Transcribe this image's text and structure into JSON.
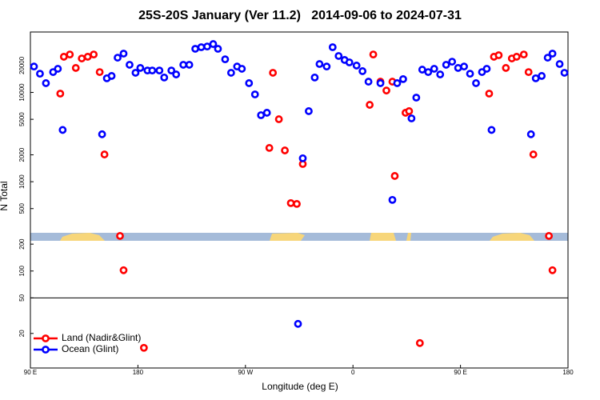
{
  "chart_data": {
    "type": "scatter",
    "title": "25S-20S January (Ver 11.2)   2014-09-06 to 2024-07-31",
    "x_label": "Longitude (deg E)",
    "y_label": "N Total",
    "xlim": [
      -270,
      180
    ],
    "xticks": [
      {
        "value": -270,
        "label": "90 E"
      },
      {
        "value": -180,
        "label": "180"
      },
      {
        "value": -90,
        "label": "90 W"
      },
      0,
      {
        "value": 90,
        "label": "90 E"
      },
      180
    ],
    "ylim": [
      8.2,
      47500
    ],
    "log_y": true,
    "yticks": [
      20,
      50,
      100,
      200,
      500,
      1000,
      2000,
      5000,
      10000,
      20000
    ],
    "reference_line": 50,
    "legend": "lower left",
    "series": [
      {
        "name": "Land (Nadir&Glint)",
        "color": "#ff0000",
        "x": [
          -245,
          -242,
          -237,
          -232,
          -227,
          -222,
          -217,
          -212,
          -208,
          -195,
          -192,
          -175,
          -70,
          -67,
          -62,
          -57,
          -52,
          -47,
          -42,
          14,
          17,
          23,
          28,
          33,
          35,
          44,
          47,
          56,
          114,
          118,
          122,
          128,
          133,
          137,
          143,
          147,
          151,
          164,
          167
        ],
        "values": [
          9700,
          25100,
          26600,
          18800,
          24000,
          25100,
          26600,
          16900,
          2020,
          247,
          102,
          13.8,
          2390,
          16600,
          5010,
          2240,
          576,
          564,
          1580,
          7260,
          26600,
          13200,
          10500,
          13200,
          1160,
          5920,
          6170,
          15.6,
          9700,
          25100,
          26100,
          18800,
          24000,
          25100,
          26600,
          16900,
          2020,
          247,
          102
        ]
      },
      {
        "name": "Ocean (Glint)",
        "color": "#0000ff",
        "x": [
          -267,
          -262,
          -257,
          -251,
          -247,
          -243,
          -210,
          -206,
          -202,
          -197,
          -192,
          -187,
          -182,
          -178,
          -172,
          -168,
          -162,
          -158,
          -152,
          -148,
          -142,
          -137,
          -132,
          -127,
          -122,
          -117,
          -113,
          -107,
          -102,
          -97,
          -93,
          -87,
          -82,
          -77,
          -72,
          -46,
          -42,
          -37,
          -32,
          -28,
          -22,
          -17,
          -12,
          -7,
          -3,
          3,
          8,
          13,
          23,
          33,
          37,
          42,
          49,
          53,
          58,
          63,
          68,
          73,
          78,
          83,
          88,
          93,
          98,
          103,
          108,
          112,
          116,
          149,
          153,
          158,
          163,
          167,
          173,
          177
        ],
        "values": [
          19500,
          16200,
          12700,
          16900,
          18400,
          3800,
          3400,
          14400,
          15300,
          24500,
          27200,
          20400,
          16600,
          18800,
          17600,
          17600,
          17600,
          14700,
          17600,
          15900,
          20400,
          20400,
          30800,
          32100,
          32700,
          34800,
          30800,
          23500,
          16600,
          19500,
          18400,
          12700,
          9500,
          5560,
          5920,
          25.6,
          1830,
          6170,
          14700,
          20800,
          19500,
          32100,
          25600,
          23100,
          21700,
          20000,
          17300,
          13200,
          12700,
          626,
          12700,
          14100,
          5120,
          8750,
          18000,
          16900,
          18400,
          15900,
          20400,
          22100,
          18800,
          19500,
          16200,
          12700,
          16900,
          18400,
          3800,
          3400,
          14400,
          15300,
          24500,
          27200,
          20800,
          16600
        ]
      }
    ]
  }
}
